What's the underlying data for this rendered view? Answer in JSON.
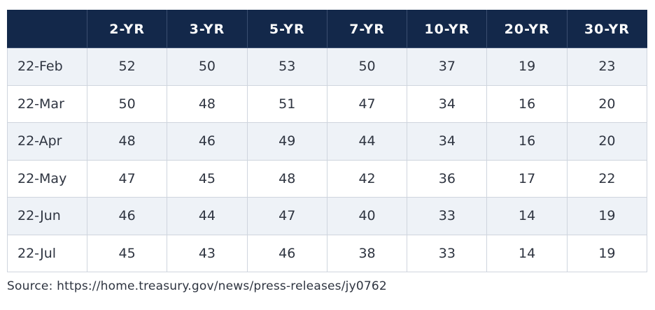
{
  "chart_data": {
    "type": "table",
    "columns": [
      "",
      "2-YR",
      "3-YR",
      "5-YR",
      "7-YR",
      "10-YR",
      "20-YR",
      "30-YR"
    ],
    "rows": [
      {
        "label": "22-Feb",
        "values": [
          "52",
          "50",
          "53",
          "50",
          "37",
          "19",
          "23"
        ]
      },
      {
        "label": "22-Mar",
        "values": [
          "50",
          "48",
          "51",
          "47",
          "34",
          "16",
          "20"
        ]
      },
      {
        "label": "22-Apr",
        "values": [
          "48",
          "46",
          "49",
          "44",
          "34",
          "16",
          "20"
        ]
      },
      {
        "label": "22-May",
        "values": [
          "47",
          "45",
          "48",
          "42",
          "36",
          "17",
          "22"
        ]
      },
      {
        "label": "22-Jun",
        "values": [
          "46",
          "44",
          "47",
          "40",
          "33",
          "14",
          "19"
        ]
      },
      {
        "label": "22-Jul",
        "values": [
          "45",
          "43",
          "46",
          "38",
          "33",
          "14",
          "19"
        ]
      }
    ]
  },
  "source": "Source: https://home.treasury.gov/news/press-releases/jy0762",
  "colors": {
    "header_bg": "#13284a",
    "header_text": "#ffffff",
    "stripe_bg": "#eef2f7",
    "grid_line": "#cfd5de"
  }
}
